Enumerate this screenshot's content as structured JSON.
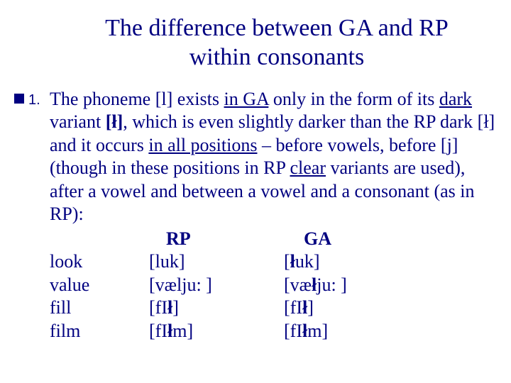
{
  "title_line1": "The difference between GA and RP",
  "title_line2": "within consonants",
  "list_number": "1.",
  "para_parts": {
    "p1": "The phoneme [l] exists ",
    "p2": "in GA",
    "p3": " only in the form of its ",
    "p4": "dark",
    "p5": " variant ",
    "p6": "[ł]",
    "p7": ", which is even slightly darker than the RP dark [ł] and it occurs ",
    "p8": "in all positions",
    "p9": " – before vowels, before [j] (though in these positions in RP ",
    "p10": "clear",
    "p11": " variants are used), after a vowel and between a vowel and a consonant (as in RP):"
  },
  "headers": {
    "col2": "RP",
    "col3": "GA"
  },
  "rows": [
    {
      "word": "look",
      "rp": "[luk]",
      "ga_pre": "[",
      "ga_b": "ł",
      "ga_post": "uk]"
    },
    {
      "word": "value",
      "rp": "[vælju: ]",
      "ga_pre": "[væ",
      "ga_b": "ł",
      "ga_post": "ju: ]"
    },
    {
      "word": "fill",
      "rp_pre": "[fI",
      "rp_b": "ł",
      "rp_post": "]",
      "ga_pre": "[fI",
      "ga_b": "ł",
      "ga_post": "]"
    },
    {
      "word": "film",
      "rp_pre": "[fI",
      "rp_b": "ł",
      "rp_post": "m]",
      "ga_pre": "[fI",
      "ga_b": "ł",
      "ga_post": "m]"
    }
  ],
  "style": {
    "text_color": "#000080",
    "background": "#ffffff"
  }
}
